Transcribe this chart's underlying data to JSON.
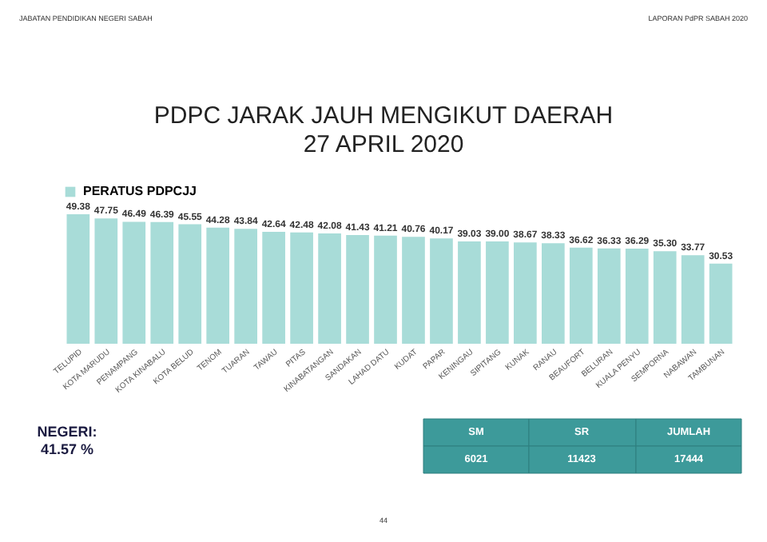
{
  "chart_data": {
    "type": "bar",
    "title": "PDPC JARAK JAUH MENGIKUT DAERAH",
    "subtitle": "27 APRIL 2020",
    "categories": [
      "TELUPID",
      "KOTA MARUDU",
      "PENAMPANG",
      "KOTA KINABALU",
      "KOTA BELUD",
      "TENOM",
      "TUARAN",
      "TAWAU",
      "PITAS",
      "KINABATANGAN",
      "SANDAKAN",
      "LAHAD DATU",
      "KUDAT",
      "PAPAR",
      "KENINGAU",
      "SIPITANG",
      "KUNAK",
      "RANAU",
      "BEAUFORT",
      "BELURAN",
      "KUALA PENYU",
      "SEMPORNA",
      "NABAWAN",
      "TAMBUNAN"
    ],
    "series": [
      {
        "name": "PERATUS PDPCJJ",
        "color": "#a8dcd8",
        "values": [
          49.38,
          47.75,
          46.49,
          46.39,
          45.55,
          44.28,
          43.84,
          42.64,
          42.48,
          42.08,
          41.43,
          41.21,
          40.76,
          40.17,
          39.03,
          39.0,
          38.67,
          38.33,
          36.62,
          36.33,
          36.29,
          35.3,
          33.77,
          30.53
        ],
        "value_labels": [
          "49.38",
          "47.75",
          "46.49",
          "46.39",
          "45.55",
          "44.28",
          "43.84",
          "42.64",
          "42.48",
          "42.08",
          "41.43",
          "41.21",
          "40.76",
          "40.17",
          "39.03",
          "39.00",
          "38.67",
          "38.33",
          "36.62",
          "36.33",
          "36.29",
          "35.30",
          "33.77",
          "30.53"
        ]
      }
    ],
    "legend": "top",
    "grid": false,
    "tick_labels": "x",
    "annotations": [
      "JABATAN PENDIDIKAN NEGERI SABAH",
      "LAPORAN PdPR SABAH 2020",
      "NEGERI:",
      "41.57 %",
      "SM",
      "SR",
      "JUMLAH",
      "6021",
      "11423",
      "17444",
      "44"
    ]
  }
}
